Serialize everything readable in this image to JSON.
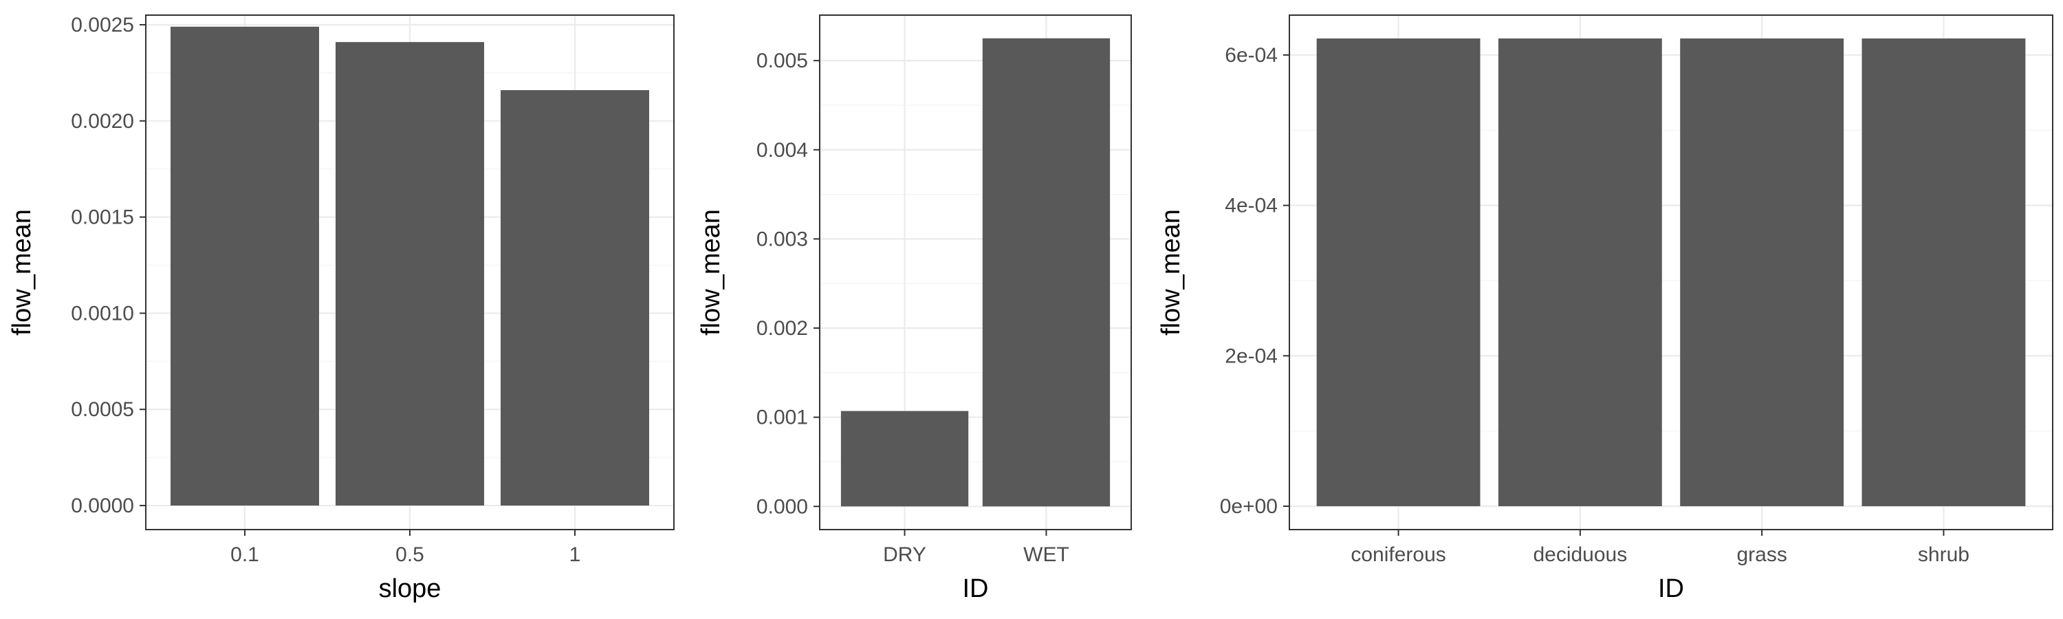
{
  "colors": {
    "bar": "#595959",
    "background": "#ffffff",
    "grid": "#ebebeb",
    "frame": "#333333"
  },
  "chart_data": [
    {
      "type": "bar",
      "title": "",
      "xlabel": "slope",
      "ylabel": "flow_mean",
      "categories": [
        "0.1",
        "0.5",
        "1"
      ],
      "values": [
        0.00249,
        0.00241,
        0.00216
      ],
      "ylim": [
        -0.000125,
        0.00255
      ],
      "yticks": [
        0,
        0.0005,
        0.001,
        0.0015,
        0.002,
        0.0025
      ],
      "ytick_labels": [
        "0.0000",
        "0.0005",
        "0.0010",
        "0.0015",
        "0.0020",
        "0.0025"
      ],
      "grid": true
    },
    {
      "type": "bar",
      "title": "",
      "xlabel": "ID",
      "ylabel": "flow_mean",
      "categories": [
        "DRY",
        "WET"
      ],
      "values": [
        0.00107,
        0.00525
      ],
      "ylim": [
        -0.00026,
        0.00551
      ],
      "yticks": [
        0,
        0.001,
        0.002,
        0.003,
        0.004,
        0.005
      ],
      "ytick_labels": [
        "0.000",
        "0.001",
        "0.002",
        "0.003",
        "0.004",
        "0.005"
      ],
      "grid": true
    },
    {
      "type": "bar",
      "title": "",
      "xlabel": "ID",
      "ylabel": "flow_mean",
      "categories": [
        "coniferous",
        "deciduous",
        "grass",
        "shrub"
      ],
      "values": [
        0.000622,
        0.000622,
        0.000622,
        0.000622
      ],
      "ylim": [
        -3.11e-05,
        0.000653
      ],
      "yticks": [
        0,
        0.0002,
        0.0004,
        0.0006
      ],
      "ytick_labels": [
        "0e+00",
        "2e-04",
        "4e-04",
        "6e-04"
      ],
      "grid": true
    }
  ]
}
